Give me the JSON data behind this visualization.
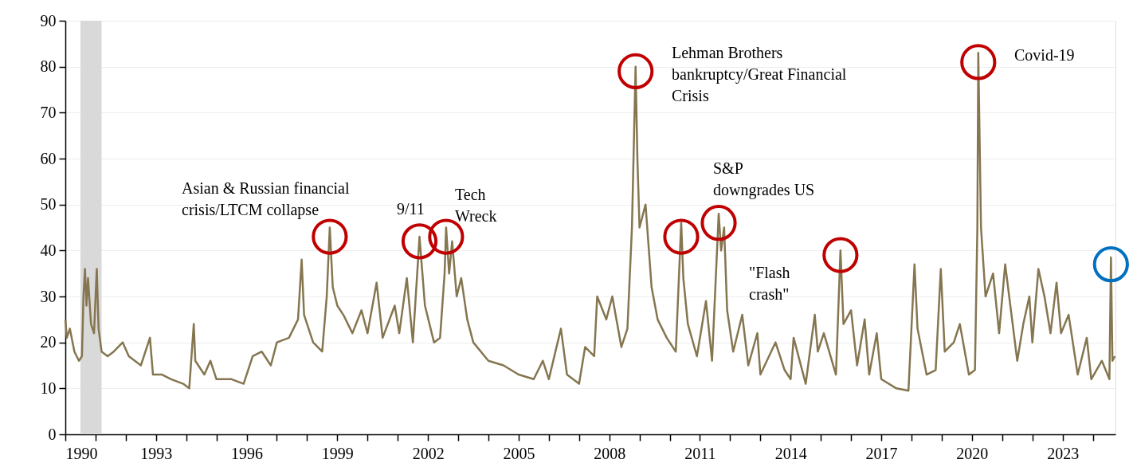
{
  "chart_data": {
    "type": "line",
    "xlim": [
      1990,
      2024.75
    ],
    "ylim": [
      0,
      90
    ],
    "xticks": [
      1990,
      {
        "value": 1991,
        "label": null
      },
      {
        "value": 1992,
        "label": null
      },
      1993,
      {
        "value": 1994,
        "label": null
      },
      {
        "value": 1995,
        "label": null
      },
      1996,
      {
        "value": 1997,
        "label": null
      },
      {
        "value": 1998,
        "label": null
      },
      1999,
      {
        "value": 2000,
        "label": null
      },
      {
        "value": 2001,
        "label": null
      },
      2002,
      {
        "value": 2003,
        "label": null
      },
      {
        "value": 2004,
        "label": null
      },
      2005,
      {
        "value": 2006,
        "label": null
      },
      {
        "value": 2007,
        "label": null
      },
      2008,
      {
        "value": 2009,
        "label": null
      },
      {
        "value": 2010,
        "label": null
      },
      2011,
      {
        "value": 2012,
        "label": null
      },
      {
        "value": 2013,
        "label": null
      },
      2014,
      {
        "value": 2015,
        "label": null
      },
      {
        "value": 2016,
        "label": null
      },
      2017,
      {
        "value": 2018,
        "label": null
      },
      {
        "value": 2019,
        "label": null
      },
      2020,
      {
        "value": 2021,
        "label": null
      },
      {
        "value": 2022,
        "label": null
      },
      2023,
      {
        "value": 2024,
        "label": null
      }
    ],
    "yticks": [
      0,
      10,
      20,
      30,
      40,
      50,
      60,
      70,
      80,
      90
    ],
    "grid": "y",
    "legend": false,
    "marker": "none",
    "line_style": "solid",
    "bands": [
      {
        "axis": "x",
        "from": 1990.5,
        "to": 1991.2,
        "color": "#d9d9d9"
      }
    ],
    "series": [
      {
        "type": "line",
        "color": "#857650",
        "x": [
          1990.0,
          1990.05,
          1990.15,
          1990.3,
          1990.45,
          1990.55,
          1990.6,
          1990.65,
          1990.7,
          1990.75,
          1990.85,
          1990.95,
          1991.04,
          1991.1,
          1991.2,
          1991.4,
          1991.6,
          1991.9,
          1992.1,
          1992.5,
          1992.8,
          1992.9,
          1993.2,
          1993.5,
          1993.9,
          1994.1,
          1994.25,
          1994.3,
          1994.6,
          1994.8,
          1995.0,
          1995.5,
          1995.9,
          1996.2,
          1996.5,
          1996.8,
          1997.0,
          1997.4,
          1997.7,
          1997.82,
          1997.9,
          1998.2,
          1998.5,
          1998.65,
          1998.75,
          1998.85,
          1999.0,
          1999.2,
          1999.5,
          1999.8,
          2000.0,
          2000.3,
          2000.5,
          2000.9,
          2001.05,
          2001.3,
          2001.5,
          2001.72,
          2001.9,
          2002.2,
          2002.4,
          2002.55,
          2002.6,
          2002.7,
          2002.8,
          2002.95,
          2003.1,
          2003.3,
          2003.5,
          2004.0,
          2004.5,
          2005.0,
          2005.5,
          2005.8,
          2006.0,
          2006.4,
          2006.6,
          2007.0,
          2007.2,
          2007.5,
          2007.6,
          2007.9,
          2008.1,
          2008.4,
          2008.6,
          2008.75,
          2008.87,
          2008.93,
          2009.0,
          2009.2,
          2009.4,
          2009.6,
          2009.9,
          2010.2,
          2010.38,
          2010.45,
          2010.6,
          2010.9,
          2011.2,
          2011.4,
          2011.62,
          2011.7,
          2011.8,
          2011.9,
          2012.1,
          2012.4,
          2012.6,
          2012.9,
          2013.0,
          2013.5,
          2013.8,
          2014.0,
          2014.1,
          2014.5,
          2014.8,
          2014.9,
          2015.1,
          2015.5,
          2015.65,
          2015.75,
          2016.0,
          2016.2,
          2016.45,
          2016.6,
          2016.85,
          2017.0,
          2017.5,
          2017.9,
          2018.1,
          2018.2,
          2018.5,
          2018.8,
          2018.97,
          2019.1,
          2019.4,
          2019.6,
          2019.9,
          2020.1,
          2020.18,
          2020.21,
          2020.3,
          2020.45,
          2020.7,
          2020.9,
          2021.1,
          2021.5,
          2021.7,
          2021.9,
          2022.0,
          2022.2,
          2022.4,
          2022.6,
          2022.8,
          2022.95,
          2023.2,
          2023.5,
          2023.8,
          2023.95,
          2024.3,
          2024.55,
          2024.6,
          2024.65,
          2024.73
        ],
        "values": [
          25,
          21,
          23,
          18,
          16,
          17,
          30,
          36,
          28,
          34,
          24,
          22,
          36,
          23,
          18,
          17,
          18,
          20,
          17,
          15,
          21,
          13,
          13,
          12,
          11,
          10,
          24,
          16,
          13,
          16,
          12,
          12,
          11,
          17,
          18,
          15,
          20,
          21,
          25,
          38,
          26,
          20,
          18,
          30,
          45,
          32,
          28,
          26,
          22,
          27,
          22,
          33,
          21,
          28,
          22,
          34,
          20,
          43,
          28,
          20,
          21,
          35,
          45,
          35,
          42,
          30,
          34,
          25,
          20,
          16,
          15,
          13,
          12,
          16,
          12,
          23,
          13,
          11,
          19,
          17,
          30,
          25,
          30,
          19,
          23,
          45,
          80,
          60,
          45,
          50,
          32,
          25,
          21,
          18,
          46,
          34,
          24,
          17,
          29,
          16,
          48,
          40,
          45,
          27,
          18,
          26,
          15,
          22,
          13,
          20,
          14,
          12,
          21,
          11,
          26,
          18,
          22,
          13,
          40,
          24,
          27,
          15,
          25,
          13,
          22,
          12,
          10,
          9.5,
          37,
          23,
          13,
          14,
          36,
          18,
          20,
          24,
          13,
          14,
          45,
          83,
          45,
          30,
          35,
          22,
          37,
          16,
          24,
          30,
          20,
          36,
          30,
          22,
          33,
          22,
          26,
          13,
          21,
          12,
          16,
          12,
          38.5,
          16,
          17
        ]
      },
      {
        "type": "scatter",
        "marker": "circle",
        "x": [
          1998.75,
          2001.72,
          2002.6,
          2008.87,
          2010.38,
          2011.62,
          2015.65,
          2020.21,
          2024.6
        ],
        "values": [
          43,
          42,
          43,
          79,
          43,
          46,
          39,
          81,
          37
        ],
        "colors": [
          "#c00000",
          "#c00000",
          "#c00000",
          "#c00000",
          "#c00000",
          "#c00000",
          "#c00000",
          "#c00000",
          "#0070c0"
        ]
      }
    ],
    "annotations": [
      "Asian & Russian financial\ncrisis/LTCM collapse",
      "9/11",
      "Tech\nWreck",
      "Lehman Brothers\nbankruptcy/Great Financial\nCrisis",
      "S&P\ndowngrades US",
      "\"Flash\ncrash\"",
      "Covid-19"
    ]
  }
}
